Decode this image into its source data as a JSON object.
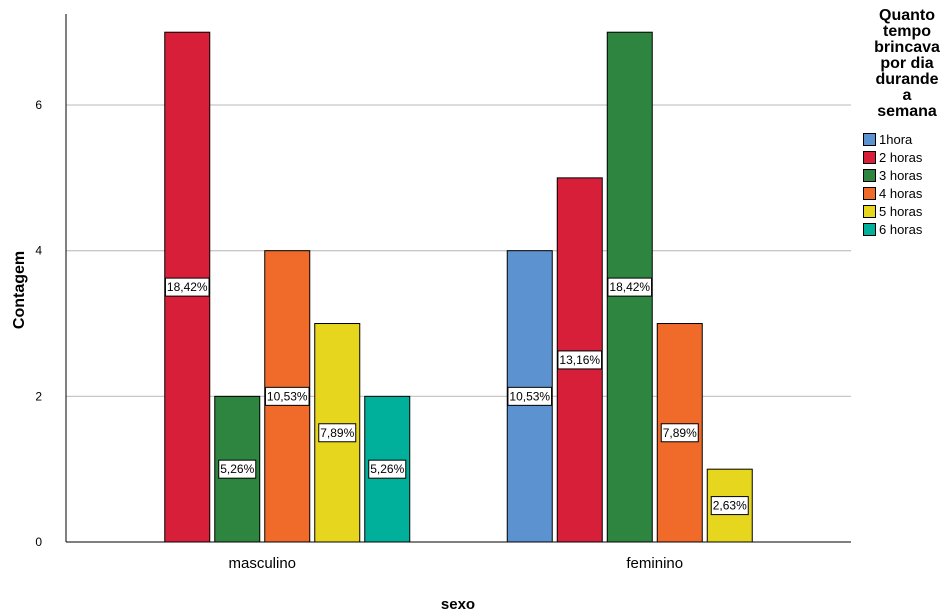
{
  "chart_data": {
    "type": "bar",
    "categories": [
      "masculino",
      "feminino"
    ],
    "xlabel": "sexo",
    "ylabel": "Contagem",
    "ylim": [
      0,
      7.25
    ],
    "yticks": [
      0,
      2,
      4,
      6
    ],
    "grid": true,
    "legend_placement": "right",
    "legend_title": "Quanto\ntempo\nbrincava\npor dia\ndurande\na\nsemana",
    "series": [
      {
        "name": "1hora",
        "color": "#5b92cf",
        "values": [
          0,
          4
        ],
        "labels": [
          "",
          "10,53%"
        ]
      },
      {
        "name": "2 horas",
        "color": "#d81f3a",
        "values": [
          7,
          5
        ],
        "labels": [
          "18,42%",
          "13,16%"
        ]
      },
      {
        "name": "3 horas",
        "color": "#2e8540",
        "values": [
          2,
          7
        ],
        "labels": [
          "5,26%",
          "18,42%"
        ]
      },
      {
        "name": "4 horas",
        "color": "#f06a2a",
        "values": [
          4,
          3
        ],
        "labels": [
          "10,53%",
          "7,89%"
        ]
      },
      {
        "name": "5 horas",
        "color": "#e6d61e",
        "values": [
          3,
          1
        ],
        "labels": [
          "7,89%",
          "2,63%"
        ]
      },
      {
        "name": "6 horas",
        "color": "#00b09b",
        "values": [
          2,
          0
        ],
        "labels": [
          "5,26%",
          ""
        ]
      }
    ]
  }
}
